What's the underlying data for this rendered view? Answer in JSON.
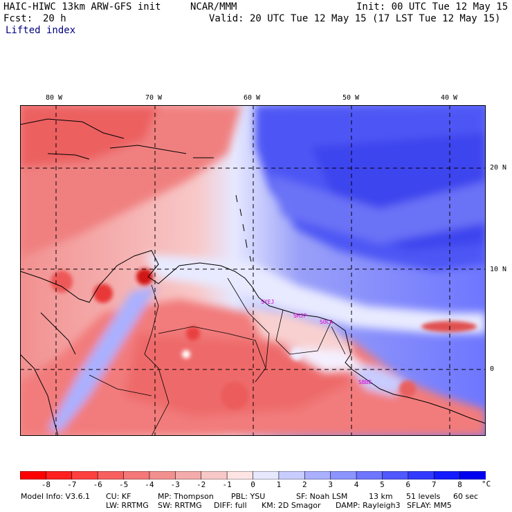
{
  "header": {
    "model": "HAIC-HIWC 13km ARW-GFS init",
    "org": "NCAR/MMM",
    "init": "Init: 00 UTC Tue 12 May 15",
    "fcst_label": "Fcst:",
    "fcst_value": "20 h",
    "valid": "Valid: 20 UTC Tue 12 May 15 (17 LST Tue 12 May 15)",
    "field": "Lifted index"
  },
  "axes": {
    "lon_labels": [
      "80 W",
      "70 W",
      "60 W",
      "50 W",
      "40 W"
    ],
    "lat_labels": [
      "20 N",
      "10 N",
      "0"
    ]
  },
  "stations": [
    "SYEJ",
    "SMJP",
    "SOCA",
    "SBBE"
  ],
  "colorbar": {
    "levels": [
      "-8",
      "-7",
      "-6",
      "-5",
      "-4",
      "-3",
      "-2",
      "-1",
      "0",
      "1",
      "2",
      "3",
      "4",
      "5",
      "6",
      "7",
      "8"
    ],
    "unit": "°C",
    "colors": [
      "#ff0000",
      "#ff2020",
      "#ff4040",
      "#f86060",
      "#f47878",
      "#f29090",
      "#f4abab",
      "#f8c8c8",
      "#ffe4e4",
      "#e6e8ff",
      "#c8ccff",
      "#aab0ff",
      "#8c94ff",
      "#6e76ff",
      "#5058ff",
      "#323aff",
      "#141cff",
      "#0000f0"
    ]
  },
  "footer": {
    "line1": {
      "model_info": "Model Info: V3.6.1",
      "cu": "CU: KF",
      "mp": "MP: Thompson",
      "pbl": "PBL: YSU",
      "sf": "SF: Noah LSM",
      "res": "13 km",
      "levels": "51 levels",
      "dt": "60 sec"
    },
    "line2": {
      "lw": "LW: RRTMG",
      "sw": "SW: RRTMG",
      "diff": "DIFF: full",
      "km": "KM: 2D Smagor",
      "damp": "DAMP: Rayleigh3",
      "sflay": "SFLAY: MM5"
    }
  }
}
